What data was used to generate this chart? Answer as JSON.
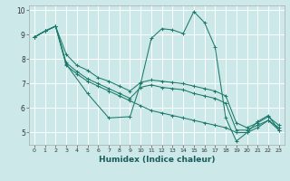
{
  "xlabel": "Humidex (Indice chaleur)",
  "bg_color": "#cce8e8",
  "grid_color": "#ffffff",
  "line_color": "#1a7a6a",
  "xlim": [
    -0.5,
    23.5
  ],
  "ylim": [
    4.5,
    10.2
  ],
  "yticks": [
    5,
    6,
    7,
    8,
    9,
    10
  ],
  "xticks": [
    0,
    1,
    2,
    3,
    4,
    5,
    6,
    7,
    8,
    9,
    10,
    11,
    12,
    13,
    14,
    15,
    16,
    17,
    18,
    19,
    20,
    21,
    22,
    23
  ],
  "series": [
    {
      "x": [
        0,
        1,
        2,
        3,
        5,
        7,
        9,
        10,
        11,
        12,
        13,
        14,
        15,
        16,
        17,
        18,
        19,
        20,
        21,
        22,
        23
      ],
      "y": [
        8.9,
        9.15,
        9.35,
        7.8,
        6.6,
        5.6,
        5.65,
        7.0,
        8.85,
        9.25,
        9.2,
        9.05,
        9.95,
        9.5,
        8.5,
        5.6,
        4.65,
        5.0,
        5.45,
        5.7,
        5.1
      ]
    },
    {
      "x": [
        0,
        1,
        2,
        3,
        4,
        5,
        6,
        7,
        8,
        9,
        10,
        11,
        12,
        13,
        14,
        15,
        16,
        17,
        18,
        19,
        20,
        21,
        22,
        23
      ],
      "y": [
        8.9,
        9.15,
        9.35,
        7.75,
        7.4,
        7.1,
        6.9,
        6.7,
        6.5,
        6.3,
        6.1,
        5.9,
        5.8,
        5.7,
        5.6,
        5.5,
        5.4,
        5.3,
        5.2,
        5.0,
        5.0,
        5.2,
        5.5,
        5.1
      ]
    },
    {
      "x": [
        0,
        1,
        2,
        3,
        4,
        5,
        6,
        7,
        8,
        9,
        10,
        11,
        12,
        13,
        14,
        15,
        16,
        17,
        18,
        19,
        20,
        21,
        22,
        23
      ],
      "y": [
        8.9,
        9.15,
        9.35,
        7.85,
        7.5,
        7.2,
        7.0,
        6.8,
        6.6,
        6.4,
        6.85,
        6.95,
        6.85,
        6.8,
        6.75,
        6.6,
        6.5,
        6.4,
        6.2,
        5.1,
        5.1,
        5.3,
        5.5,
        5.2
      ]
    },
    {
      "x": [
        0,
        1,
        2,
        3,
        4,
        5,
        6,
        7,
        8,
        9,
        10,
        11,
        12,
        13,
        14,
        15,
        16,
        17,
        18,
        19,
        20,
        21,
        22,
        23
      ],
      "y": [
        8.9,
        9.15,
        9.35,
        8.2,
        7.75,
        7.55,
        7.25,
        7.1,
        6.9,
        6.7,
        7.05,
        7.15,
        7.1,
        7.05,
        7.0,
        6.9,
        6.8,
        6.7,
        6.5,
        5.4,
        5.2,
        5.4,
        5.65,
        5.3
      ]
    }
  ]
}
